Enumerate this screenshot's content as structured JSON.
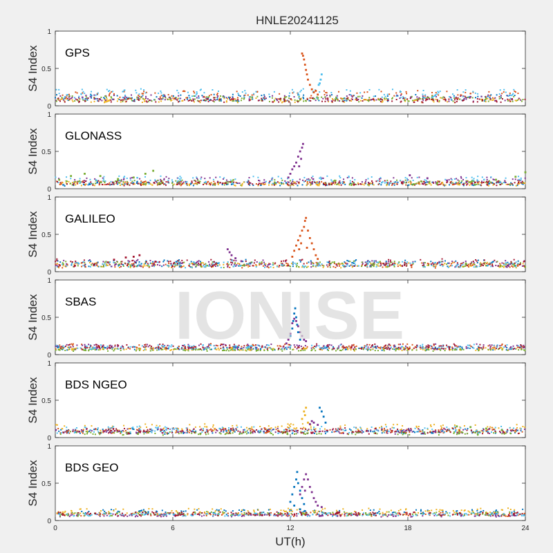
{
  "figure": {
    "title": "HNLE20241125",
    "xlabel": "UT(h)",
    "watermark": "IONISE"
  },
  "chart_data": [
    {
      "type": "scatter",
      "panel_label": "GPS",
      "ylabel": "S4 Index",
      "xlim": [
        0,
        24
      ],
      "ylim": [
        0,
        1
      ],
      "x_ticks": [
        "0",
        "6",
        "12",
        "18",
        "24"
      ],
      "y_ticks": [
        "0",
        "0.5",
        "1"
      ],
      "baseline": [
        0.02,
        0.22
      ],
      "series": [
        {
          "color": "#D95319",
          "points": [
            [
              12.6,
              0.7
            ],
            [
              12.65,
              0.67
            ],
            [
              12.7,
              0.62
            ],
            [
              12.75,
              0.55
            ],
            [
              12.8,
              0.48
            ],
            [
              12.85,
              0.42
            ],
            [
              12.9,
              0.35
            ],
            [
              13.0,
              0.28
            ],
            [
              13.1,
              0.22
            ],
            [
              13.2,
              0.18
            ],
            [
              13.3,
              0.2
            ],
            [
              13.4,
              0.15
            ]
          ]
        },
        {
          "color": "#4DBEEE",
          "points": [
            [
              13.6,
              0.42
            ],
            [
              13.55,
              0.35
            ],
            [
              13.5,
              0.3
            ],
            [
              13.45,
              0.28
            ]
          ]
        }
      ]
    },
    {
      "type": "scatter",
      "panel_label": "GLONASS",
      "ylabel": "S4 Index",
      "xlim": [
        0,
        24
      ],
      "ylim": [
        0,
        1
      ],
      "x_ticks": [
        "0",
        "6",
        "12",
        "18",
        "24"
      ],
      "y_ticks": [
        "0",
        "0.5",
        "1"
      ],
      "baseline": [
        0.02,
        0.2
      ],
      "series": [
        {
          "color": "#77AC30",
          "points": [
            [
              0.2,
              0.12
            ],
            [
              0.8,
              0.17
            ],
            [
              1.5,
              0.2
            ],
            [
              2.3,
              0.17
            ],
            [
              3.2,
              0.13
            ],
            [
              4.0,
              0.15
            ],
            [
              4.6,
              0.2
            ],
            [
              5.0,
              0.24
            ],
            [
              18.3,
              0.06
            ],
            [
              19.5,
              0.08
            ],
            [
              21,
              0.1
            ],
            [
              22.5,
              0.12
            ],
            [
              23.5,
              0.16
            ],
            [
              24,
              0.22
            ]
          ]
        },
        {
          "color": "#7E2F8E",
          "points": [
            [
              11.9,
              0.15
            ],
            [
              12.0,
              0.2
            ],
            [
              12.1,
              0.26
            ],
            [
              12.2,
              0.3
            ],
            [
              12.3,
              0.35
            ],
            [
              12.4,
              0.43
            ],
            [
              12.5,
              0.5
            ],
            [
              12.6,
              0.55
            ],
            [
              12.65,
              0.6
            ],
            [
              12.55,
              0.4
            ],
            [
              12.45,
              0.3
            ],
            [
              18.1,
              0.18
            ],
            [
              19,
              0.14
            ],
            [
              20,
              0.11
            ],
            [
              21,
              0.09
            ]
          ]
        }
      ]
    },
    {
      "type": "scatter",
      "panel_label": "GALILEO",
      "ylabel": "S4 Index",
      "xlim": [
        0,
        24
      ],
      "ylim": [
        0,
        1
      ],
      "x_ticks": [
        "0",
        "6",
        "12",
        "18",
        "24"
      ],
      "y_ticks": [
        "0",
        "0.5",
        "1"
      ],
      "baseline": [
        0.02,
        0.2
      ],
      "series": [
        {
          "color": "#D95319",
          "points": [
            [
              12.1,
              0.2
            ],
            [
              12.2,
              0.28
            ],
            [
              12.3,
              0.35
            ],
            [
              12.4,
              0.42
            ],
            [
              12.5,
              0.48
            ],
            [
              12.6,
              0.55
            ],
            [
              12.7,
              0.6
            ],
            [
              12.75,
              0.68
            ],
            [
              12.8,
              0.72
            ],
            [
              12.9,
              0.55
            ],
            [
              13.0,
              0.45
            ],
            [
              13.1,
              0.38
            ],
            [
              13.2,
              0.3
            ],
            [
              13.3,
              0.22
            ],
            [
              13.4,
              0.17
            ],
            [
              12.45,
              0.3
            ],
            [
              12.55,
              0.38
            ],
            [
              12.85,
              0.32
            ]
          ]
        },
        {
          "color": "#A2142F",
          "points": [
            [
              1,
              0.08
            ],
            [
              2,
              0.1
            ],
            [
              3,
              0.16
            ],
            [
              3.6,
              0.19
            ],
            [
              4,
              0.2
            ],
            [
              4.3,
              0.22
            ]
          ]
        },
        {
          "color": "#7E2F8E",
          "points": [
            [
              8.8,
              0.3
            ],
            [
              8.9,
              0.26
            ],
            [
              9.0,
              0.22
            ],
            [
              9.2,
              0.18
            ],
            [
              9.5,
              0.14
            ]
          ]
        }
      ]
    },
    {
      "type": "scatter",
      "panel_label": "SBAS",
      "ylabel": "S4 Index",
      "xlim": [
        0,
        24
      ],
      "ylim": [
        0,
        1
      ],
      "x_ticks": [
        "0",
        "6",
        "12",
        "18",
        "24"
      ],
      "y_ticks": [
        "0",
        "0.5",
        "1"
      ],
      "baseline": [
        0.04,
        0.15
      ],
      "series": [
        {
          "color": "#0072BD",
          "points": [
            [
              12.0,
              0.25
            ],
            [
              12.1,
              0.35
            ],
            [
              12.15,
              0.45
            ],
            [
              12.2,
              0.55
            ],
            [
              12.25,
              0.62
            ],
            [
              12.3,
              0.5
            ],
            [
              12.35,
              0.4
            ],
            [
              12.4,
              0.3
            ],
            [
              12.5,
              0.2
            ]
          ]
        },
        {
          "color": "#7E2F8E",
          "points": [
            [
              11.8,
              0.15
            ],
            [
              11.9,
              0.2
            ],
            [
              12.0,
              0.28
            ],
            [
              12.1,
              0.42
            ],
            [
              12.2,
              0.48
            ],
            [
              12.3,
              0.45
            ],
            [
              12.4,
              0.38
            ],
            [
              12.5,
              0.3
            ],
            [
              12.6,
              0.25
            ],
            [
              12.7,
              0.2
            ],
            [
              12.8,
              0.18
            ]
          ]
        }
      ]
    },
    {
      "type": "scatter",
      "panel_label": "BDS NGEO",
      "ylabel": "S4 Index",
      "xlim": [
        0,
        24
      ],
      "ylim": [
        0,
        1
      ],
      "x_ticks": [
        "0",
        "6",
        "12",
        "18",
        "24"
      ],
      "y_ticks": [
        "0",
        "0.5",
        "1"
      ],
      "baseline": [
        0.02,
        0.18
      ],
      "series": [
        {
          "color": "#EDB120",
          "points": [
            [
              12.6,
              0.25
            ],
            [
              12.7,
              0.35
            ],
            [
              12.8,
              0.4
            ],
            [
              12.75,
              0.3
            ],
            [
              12.9,
              0.2
            ]
          ]
        },
        {
          "color": "#0072BD",
          "points": [
            [
              13.5,
              0.4
            ],
            [
              13.6,
              0.35
            ],
            [
              13.7,
              0.28
            ],
            [
              13.8,
              0.2
            ]
          ]
        },
        {
          "color": "#7E2F8E",
          "points": [
            [
              13.0,
              0.18
            ],
            [
              13.1,
              0.22
            ],
            [
              13.2,
              0.2
            ],
            [
              13.4,
              0.17
            ]
          ]
        },
        {
          "color": "#77AC30",
          "points": [
            [
              20.5,
              0.15
            ],
            [
              21.2,
              0.14
            ],
            [
              22,
              0.12
            ],
            [
              22.8,
              0.1
            ]
          ]
        }
      ]
    },
    {
      "type": "scatter",
      "panel_label": "BDS GEO",
      "ylabel": "S4 Index",
      "xlim": [
        0,
        24
      ],
      "ylim": [
        0,
        1
      ],
      "x_ticks": [
        "0",
        "6",
        "12",
        "18",
        "24"
      ],
      "y_ticks": [
        "0",
        "0.5",
        "1"
      ],
      "baseline": [
        0.04,
        0.16
      ],
      "series": [
        {
          "color": "#0072BD",
          "points": [
            [
              12.0,
              0.25
            ],
            [
              12.1,
              0.35
            ],
            [
              12.2,
              0.45
            ],
            [
              12.3,
              0.55
            ],
            [
              12.35,
              0.65
            ],
            [
              12.4,
              0.5
            ],
            [
              12.5,
              0.4
            ],
            [
              12.6,
              0.3
            ],
            [
              12.7,
              0.22
            ],
            [
              12.5,
              0.15
            ],
            [
              12.2,
              0.2
            ]
          ]
        },
        {
          "color": "#7E2F8E",
          "points": [
            [
              12.5,
              0.35
            ],
            [
              12.6,
              0.45
            ],
            [
              12.7,
              0.55
            ],
            [
              12.8,
              0.62
            ],
            [
              12.9,
              0.55
            ],
            [
              13.0,
              0.45
            ],
            [
              13.1,
              0.38
            ],
            [
              13.2,
              0.3
            ],
            [
              13.3,
              0.25
            ],
            [
              13.4,
              0.2
            ],
            [
              13.6,
              0.18
            ],
            [
              12.75,
              0.4
            ]
          ]
        }
      ]
    }
  ]
}
